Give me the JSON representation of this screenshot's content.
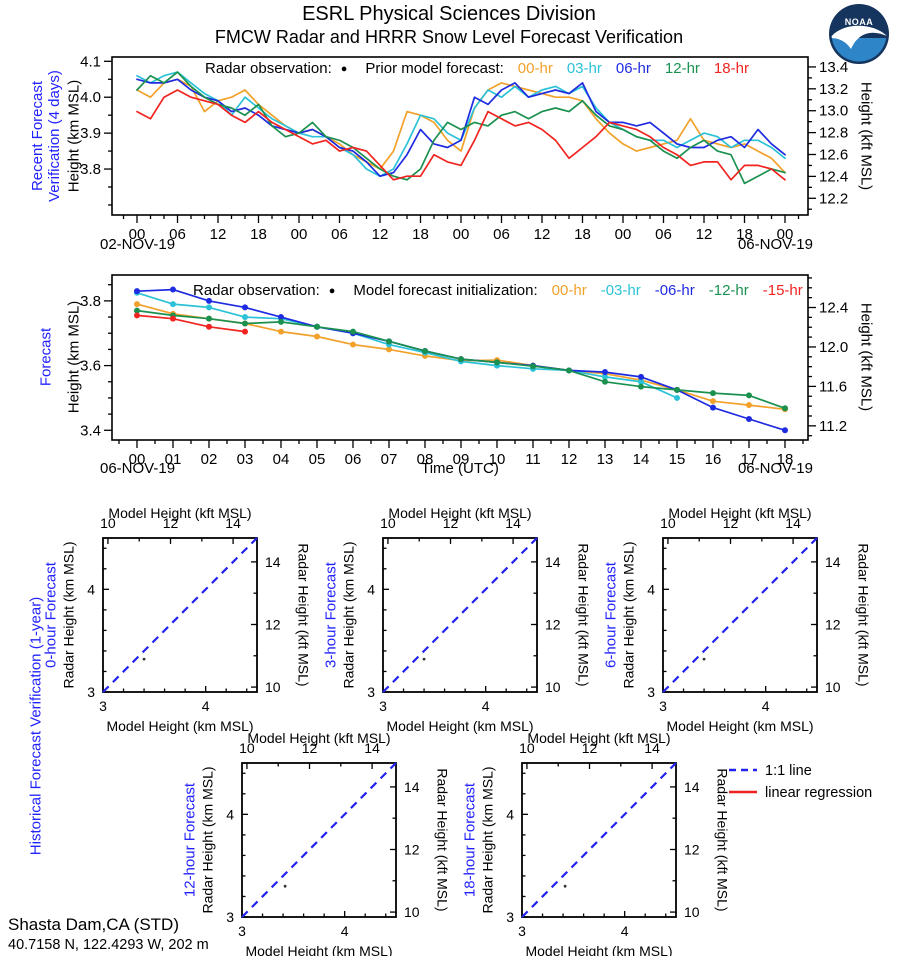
{
  "page": {
    "title": "ESRL Physical Sciences Division",
    "subtitle": "FMCW Radar and HRRR Snow Level Forecast Verification"
  },
  "logo": {
    "label": "NOAA",
    "navy": "#16355E",
    "blue": "#2E86C8"
  },
  "palette": {
    "orange": "#F2A12B",
    "cyan": "#2BC2D8",
    "blue": "#1F2BE0",
    "green": "#1B9150",
    "red": "#F02420",
    "label_blue": "#2222FF",
    "one_to_one_blue": "#2222EE",
    "regression_red": "#EE2222"
  },
  "section_labels": {
    "historical": "Historical Forecast Verification (1-year)"
  },
  "scatter_legend": [
    {
      "label": "1:1 line",
      "style": "dashed",
      "color_key": "one_to_one_blue"
    },
    {
      "label": "linear regression",
      "style": "solid",
      "color_key": "regression_red"
    }
  ],
  "footer": {
    "station": "Shasta Dam,CA (STD)",
    "coords": "40.7158 N, 122.4293 W, 202 m"
  },
  "chart_data": [
    {
      "id": "recent-verification",
      "type": "line",
      "panel_title_lines": [
        "Recent Forecast",
        "Verification (4 days)"
      ],
      "ylabel_left": "Height (km MSL)",
      "ylabel_right": "Height (kft MSL)",
      "legend": {
        "obs_label": "Radar observation:",
        "marker": "●",
        "series_label": "Prior model forecast:",
        "entries": [
          {
            "label": "00-hr",
            "color_key": "orange"
          },
          {
            "label": "03-hr",
            "color_key": "cyan"
          },
          {
            "label": "06-hr",
            "color_key": "blue"
          },
          {
            "label": "12-hr",
            "color_key": "green"
          },
          {
            "label": "18-hr",
            "color_key": "red"
          }
        ]
      },
      "date_left": "02-NOV-19",
      "date_right": "06-NOV-19",
      "ylim_km": [
        3.672,
        4.112
      ],
      "y_minor_km": 0.05,
      "yticks_left": [
        {
          "v": 3.8,
          "t": "3.8"
        },
        {
          "v": 3.9,
          "t": "3.9"
        },
        {
          "v": 4.0,
          "t": "4.0"
        },
        {
          "v": 4.1,
          "t": "4.1"
        }
      ],
      "yticks_right_kft": [
        {
          "v": 12.2,
          "t": "12.2"
        },
        {
          "v": 12.4,
          "t": "12.4"
        },
        {
          "v": 12.6,
          "t": "12.6"
        },
        {
          "v": 12.8,
          "t": "12.8"
        },
        {
          "v": 13.0,
          "t": "13.0"
        },
        {
          "v": 13.2,
          "t": "13.2"
        },
        {
          "v": 13.4,
          "t": "13.4"
        }
      ],
      "ykft_minor": 0.1,
      "xticks": {
        "major_step_h": 6,
        "minor_step_h": 2,
        "labels": [
          "00",
          "06",
          "12",
          "18",
          "00",
          "06",
          "12",
          "18",
          "00",
          "06",
          "12",
          "18",
          "00",
          "06",
          "12",
          "18",
          "00"
        ]
      },
      "series": [
        {
          "name": "00-hr",
          "color_key": "orange",
          "x0": 0,
          "dx": 2,
          "y": [
            4.02,
            4.0,
            4.04,
            4.05,
            4.03,
            3.96,
            3.99,
            4.0,
            4.02,
            3.98,
            3.95,
            3.92,
            3.9,
            3.91,
            3.89,
            3.87,
            3.84,
            3.82,
            3.8,
            3.85,
            3.96,
            3.95,
            3.93,
            3.88,
            3.85,
            3.97,
            4.02,
            4.04,
            4.03,
            4.02,
            4.01,
            4.0,
            4.0,
            3.99,
            3.94,
            3.9,
            3.87,
            3.85,
            3.86,
            3.87,
            3.88,
            3.94,
            3.88,
            3.87,
            3.86,
            3.87,
            3.85,
            3.83,
            3.79
          ]
        },
        {
          "name": "03-hr",
          "color_key": "cyan",
          "x0": 0,
          "dx": 2,
          "y": [
            4.06,
            4.04,
            4.06,
            4.07,
            4.04,
            4.01,
            3.99,
            3.95,
            4.0,
            3.97,
            3.94,
            3.92,
            3.9,
            3.89,
            3.89,
            3.86,
            3.84,
            3.8,
            3.78,
            3.8,
            3.87,
            3.95,
            3.94,
            3.9,
            3.88,
            3.97,
            4.02,
            4.0,
            4.03,
            4.0,
            4.02,
            4.03,
            4.01,
            4.03,
            3.97,
            3.93,
            3.91,
            3.89,
            3.88,
            3.88,
            3.86,
            3.88,
            3.9,
            3.89,
            3.86,
            3.88,
            3.88,
            3.86,
            3.83
          ]
        },
        {
          "name": "06-hr",
          "color_key": "blue",
          "x0": 0,
          "dx": 2,
          "y": [
            4.05,
            4.04,
            4.04,
            4.05,
            4.02,
            4.0,
            3.99,
            3.96,
            3.97,
            3.95,
            3.92,
            3.91,
            3.9,
            3.91,
            3.89,
            3.86,
            3.85,
            3.82,
            3.78,
            3.79,
            3.84,
            3.91,
            3.87,
            3.86,
            3.88,
            4.0,
            3.98,
            4.02,
            4.04,
            4.0,
            4.01,
            4.02,
            4.01,
            4.04,
            3.96,
            3.93,
            3.93,
            3.92,
            3.93,
            3.9,
            3.87,
            3.86,
            3.86,
            3.88,
            3.89,
            3.86,
            3.91,
            3.87,
            3.84
          ]
        },
        {
          "name": "12-hr",
          "color_key": "green",
          "x0": 0,
          "dx": 2,
          "y": [
            4.02,
            4.06,
            4.04,
            4.07,
            4.03,
            4.0,
            3.98,
            3.97,
            3.95,
            3.98,
            3.92,
            3.89,
            3.9,
            3.93,
            3.89,
            3.88,
            3.86,
            3.83,
            3.8,
            3.78,
            3.77,
            3.8,
            3.88,
            3.93,
            3.91,
            3.93,
            3.92,
            3.95,
            3.96,
            3.94,
            3.96,
            3.97,
            3.96,
            3.99,
            3.95,
            3.92,
            3.91,
            3.89,
            3.88,
            3.85,
            3.83,
            3.86,
            3.88,
            3.85,
            3.84,
            3.76,
            3.78,
            3.8,
            3.79
          ]
        },
        {
          "name": "18-hr",
          "color_key": "red",
          "x0": 0,
          "dx": 2,
          "y": [
            3.96,
            3.94,
            4.0,
            4.02,
            4.0,
            3.99,
            3.98,
            3.95,
            3.93,
            3.96,
            3.93,
            3.91,
            3.89,
            3.87,
            3.88,
            3.85,
            3.86,
            3.85,
            3.81,
            3.77,
            3.78,
            3.78,
            3.84,
            3.82,
            3.81,
            3.88,
            3.96,
            3.94,
            3.92,
            3.93,
            3.91,
            3.88,
            3.83,
            3.86,
            3.89,
            3.93,
            3.92,
            3.91,
            3.89,
            3.86,
            3.84,
            3.81,
            3.82,
            3.82,
            3.77,
            3.81,
            3.81,
            3.8,
            3.77
          ]
        }
      ]
    },
    {
      "id": "forecast",
      "type": "line",
      "panel_title_lines": [
        "Forecast"
      ],
      "ylabel_left": "Height (km MSL)",
      "ylabel_right": "Height (kft MSL)",
      "xlabel": "Time (UTC)",
      "legend": {
        "obs_label": "Radar observation:",
        "marker": "●",
        "series_label": "Model forecast initialization:",
        "entries": [
          {
            "label": "00-hr",
            "color_key": "orange"
          },
          {
            "label": "-03-hr",
            "color_key": "cyan"
          },
          {
            "label": "-06-hr",
            "color_key": "blue"
          },
          {
            "label": "-12-hr",
            "color_key": "green"
          },
          {
            "label": "-15-hr",
            "color_key": "red"
          }
        ]
      },
      "date_left": "06-NOV-19",
      "date_right": "06-NOV-19",
      "ylim_km": [
        3.37,
        3.88
      ],
      "y_minor_km": 0.05,
      "yticks_left": [
        {
          "v": 3.4,
          "t": "3.4"
        },
        {
          "v": 3.6,
          "t": "3.6"
        },
        {
          "v": 3.8,
          "t": "3.8"
        }
      ],
      "yticks_right_kft": [
        {
          "v": 11.2,
          "t": "11.2"
        },
        {
          "v": 11.6,
          "t": "11.6"
        },
        {
          "v": 12.0,
          "t": "12.0"
        },
        {
          "v": 12.4,
          "t": "12.4"
        }
      ],
      "ykft_minor": 0.1,
      "markers": true,
      "xticks": {
        "major_step_h": 1,
        "minor_step_h": 0.5,
        "labels": [
          "00",
          "01",
          "02",
          "03",
          "04",
          "05",
          "06",
          "07",
          "08",
          "09",
          "10",
          "11",
          "12",
          "13",
          "14",
          "15",
          "16",
          "17",
          "18"
        ]
      },
      "series": [
        {
          "name": "00-hr",
          "color_key": "orange",
          "x0": 0,
          "dx": 1,
          "y": [
            3.79,
            3.76,
            3.745,
            3.73,
            3.705,
            3.69,
            3.665,
            3.65,
            3.63,
            3.615,
            3.617,
            3.6,
            3.585,
            3.575,
            3.555,
            3.525,
            3.49,
            3.478,
            3.465
          ]
        },
        {
          "name": "-03-hr",
          "color_key": "cyan",
          "x0": 0,
          "dx": 1,
          "y": [
            3.825,
            3.79,
            3.78,
            3.75,
            3.745,
            3.72,
            3.7,
            3.665,
            3.64,
            3.613,
            3.6,
            3.59,
            3.585,
            3.565,
            3.55,
            3.5
          ]
        },
        {
          "name": "-06-hr",
          "color_key": "blue",
          "x0": 0,
          "dx": 1,
          "y": [
            3.83,
            3.835,
            3.8,
            3.78,
            3.75,
            3.72,
            3.7,
            3.675,
            3.645,
            3.62,
            3.61,
            3.6,
            3.585,
            3.58,
            3.565,
            3.525,
            3.47,
            3.435,
            3.4
          ]
        },
        {
          "name": "-12-hr",
          "color_key": "green",
          "x0": 0,
          "dx": 1,
          "y": [
            3.77,
            3.755,
            3.745,
            3.73,
            3.735,
            3.72,
            3.705,
            3.675,
            3.645,
            3.62,
            3.61,
            3.598,
            3.585,
            3.55,
            3.535,
            3.525,
            3.515,
            3.508,
            3.468
          ]
        },
        {
          "name": "-15-hr",
          "color_key": "red",
          "x0": 0,
          "dx": 1,
          "y": [
            3.755,
            3.745,
            3.72,
            3.705
          ]
        }
      ]
    },
    {
      "id": "scatter-0h",
      "type": "scatter",
      "panel_title": "0-hour Forecast",
      "xlabel_top": "Model Height (kft MSL)",
      "xlabel_bottom": "Model Height (km MSL)",
      "ylabel_left": "Radar Height (km MSL)",
      "ylabel_right": "Radar Height (kft MSL)",
      "xlim_km": [
        3,
        4.5
      ],
      "ylim_km": [
        3,
        4.5
      ],
      "ticks_km": [
        {
          "v": 3,
          "t": "3"
        },
        {
          "v": 4,
          "t": "4"
        }
      ],
      "ticks_kft": [
        {
          "v": 10,
          "t": "10"
        },
        {
          "v": 12,
          "t": "12"
        },
        {
          "v": 14,
          "t": "14"
        }
      ],
      "one_to_one": [
        [
          3,
          3
        ],
        [
          4.5,
          4.5
        ]
      ],
      "points": [
        [
          3.4,
          3.32
        ]
      ]
    },
    {
      "id": "scatter-3h",
      "type": "scatter",
      "panel_title": "3-hour Forecast",
      "xlabel_top": "Model Height (kft MSL)",
      "xlabel_bottom": "Model Height (km MSL)",
      "ylabel_left": "Radar Height (km MSL)",
      "ylabel_right": "Radar Height (kft MSL)",
      "xlim_km": [
        3,
        4.5
      ],
      "ylim_km": [
        3,
        4.5
      ],
      "ticks_km": [
        {
          "v": 3,
          "t": "3"
        },
        {
          "v": 4,
          "t": "4"
        }
      ],
      "ticks_kft": [
        {
          "v": 10,
          "t": "10"
        },
        {
          "v": 12,
          "t": "12"
        },
        {
          "v": 14,
          "t": "14"
        }
      ],
      "one_to_one": [
        [
          3,
          3
        ],
        [
          4.5,
          4.5
        ]
      ],
      "points": [
        [
          3.4,
          3.32
        ]
      ]
    },
    {
      "id": "scatter-6h",
      "type": "scatter",
      "panel_title": "6-hour Forecast",
      "xlabel_top": "Model Height (kft MSL)",
      "xlabel_bottom": "Model Height (km MSL)",
      "ylabel_left": "Radar Height (km MSL)",
      "ylabel_right": "Radar Height (kft MSL)",
      "xlim_km": [
        3,
        4.5
      ],
      "ylim_km": [
        3,
        4.5
      ],
      "ticks_km": [
        {
          "v": 3,
          "t": "3"
        },
        {
          "v": 4,
          "t": "4"
        }
      ],
      "ticks_kft": [
        {
          "v": 10,
          "t": "10"
        },
        {
          "v": 12,
          "t": "12"
        },
        {
          "v": 14,
          "t": "14"
        }
      ],
      "one_to_one": [
        [
          3,
          3
        ],
        [
          4.5,
          4.5
        ]
      ],
      "points": [
        [
          3.4,
          3.32
        ]
      ]
    },
    {
      "id": "scatter-12h",
      "type": "scatter",
      "panel_title": "12-hour Forecast",
      "xlabel_top": "Model Height (kft MSL)",
      "xlabel_bottom": "Model Height (km MSL)",
      "ylabel_left": "Radar Height (km MSL)",
      "ylabel_right": "Radar Height (kft MSL)",
      "xlim_km": [
        3,
        4.5
      ],
      "ylim_km": [
        3,
        4.5
      ],
      "ticks_km": [
        {
          "v": 3,
          "t": "3"
        },
        {
          "v": 4,
          "t": "4"
        }
      ],
      "ticks_kft": [
        {
          "v": 10,
          "t": "10"
        },
        {
          "v": 12,
          "t": "12"
        },
        {
          "v": 14,
          "t": "14"
        }
      ],
      "one_to_one": [
        [
          3,
          3
        ],
        [
          4.5,
          4.5
        ]
      ],
      "points": [
        [
          3.42,
          3.3
        ]
      ]
    },
    {
      "id": "scatter-18h",
      "type": "scatter",
      "panel_title": "18-hour Forecast",
      "xlabel_top": "Model Height (kft MSL)",
      "xlabel_bottom": "Model Height (km MSL)",
      "ylabel_left": "Radar Height (km MSL)",
      "ylabel_right": "Radar Height (kft MSL)",
      "xlim_km": [
        3,
        4.5
      ],
      "ylim_km": [
        3,
        4.5
      ],
      "ticks_km": [
        {
          "v": 3,
          "t": "3"
        },
        {
          "v": 4,
          "t": "4"
        }
      ],
      "ticks_kft": [
        {
          "v": 10,
          "t": "10"
        },
        {
          "v": 12,
          "t": "12"
        },
        {
          "v": 14,
          "t": "14"
        }
      ],
      "one_to_one": [
        [
          3,
          3
        ],
        [
          4.5,
          4.5
        ]
      ],
      "points": [
        [
          3.42,
          3.3
        ]
      ]
    }
  ]
}
